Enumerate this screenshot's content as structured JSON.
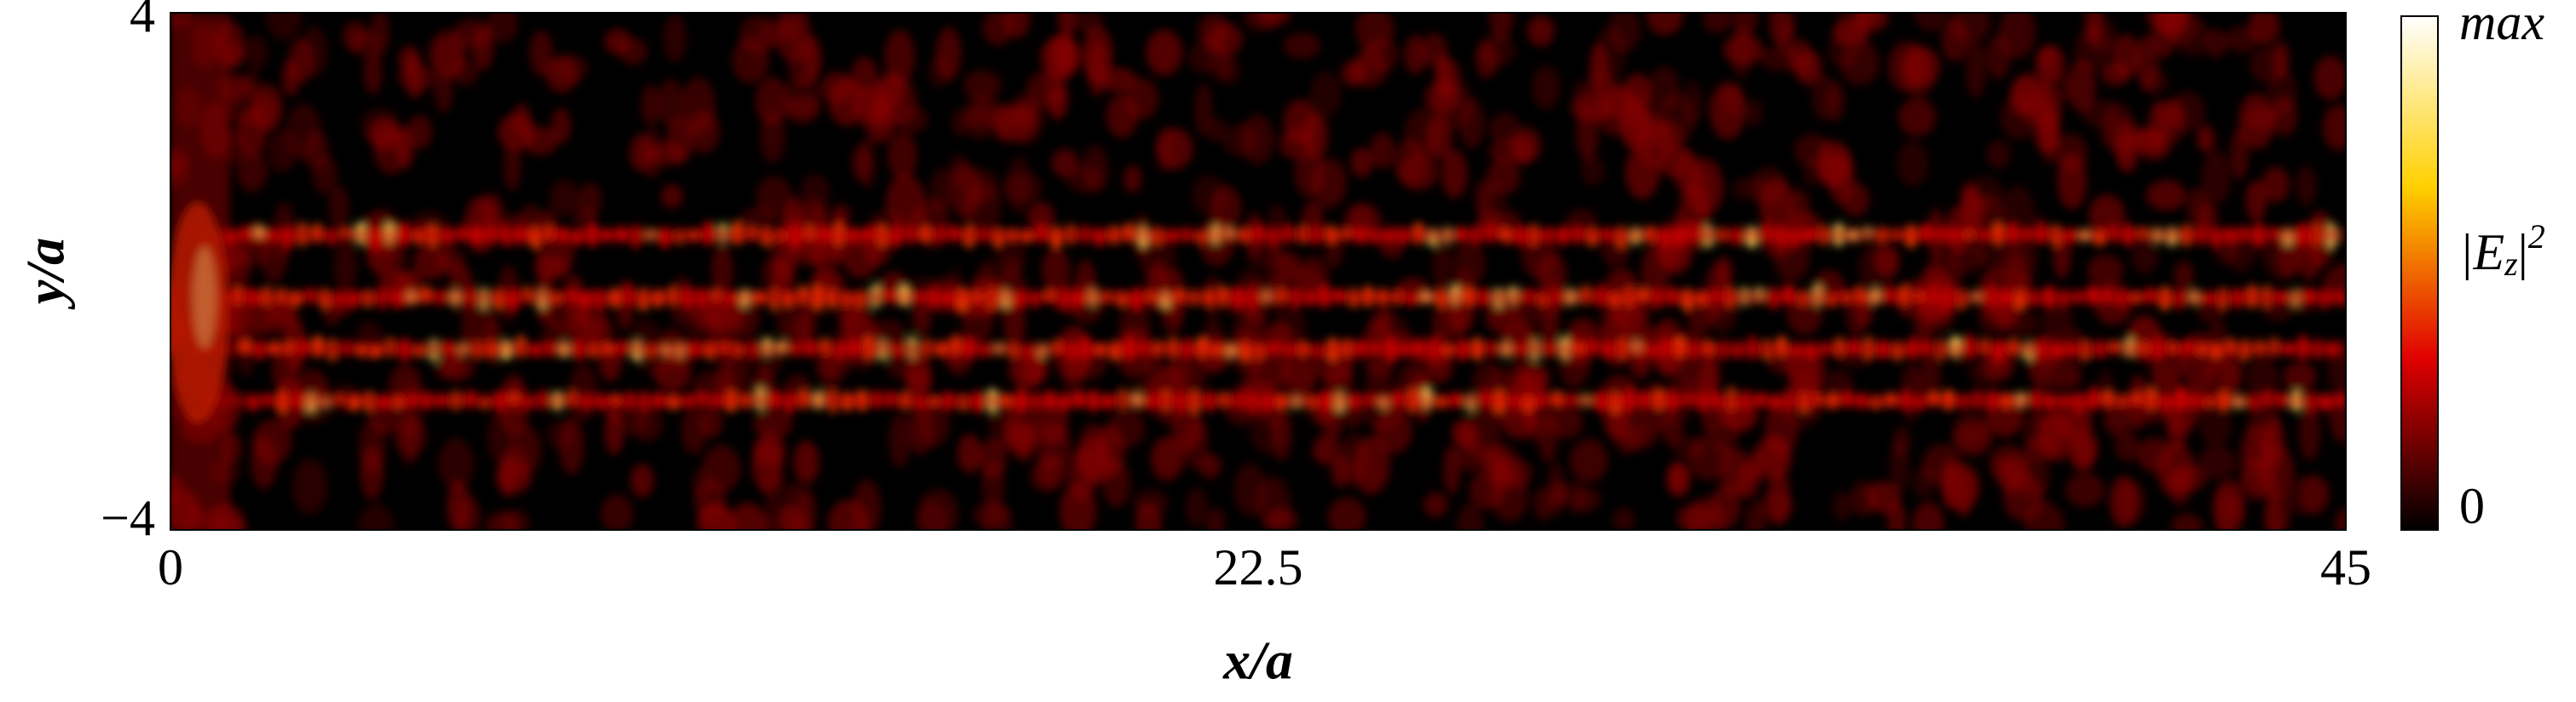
{
  "chart_data": {
    "type": "heatmap",
    "xlabel": "x/a",
    "ylabel": "y/a",
    "xlim": [
      0,
      45
    ],
    "xticks": [
      0,
      22.5,
      45
    ],
    "ylim": [
      -4,
      4
    ],
    "yticks": [
      {
        "value": -4,
        "label": "−4"
      },
      4
    ],
    "colorbar": {
      "min_label": "0",
      "max_label": "max",
      "label": {
        "open": "|E",
        "sub": "z",
        "close": "|",
        "sup": "2"
      }
    },
    "colormap": [
      "#000000",
      "#e00000",
      "#ffd000",
      "#ffffff"
    ]
  }
}
